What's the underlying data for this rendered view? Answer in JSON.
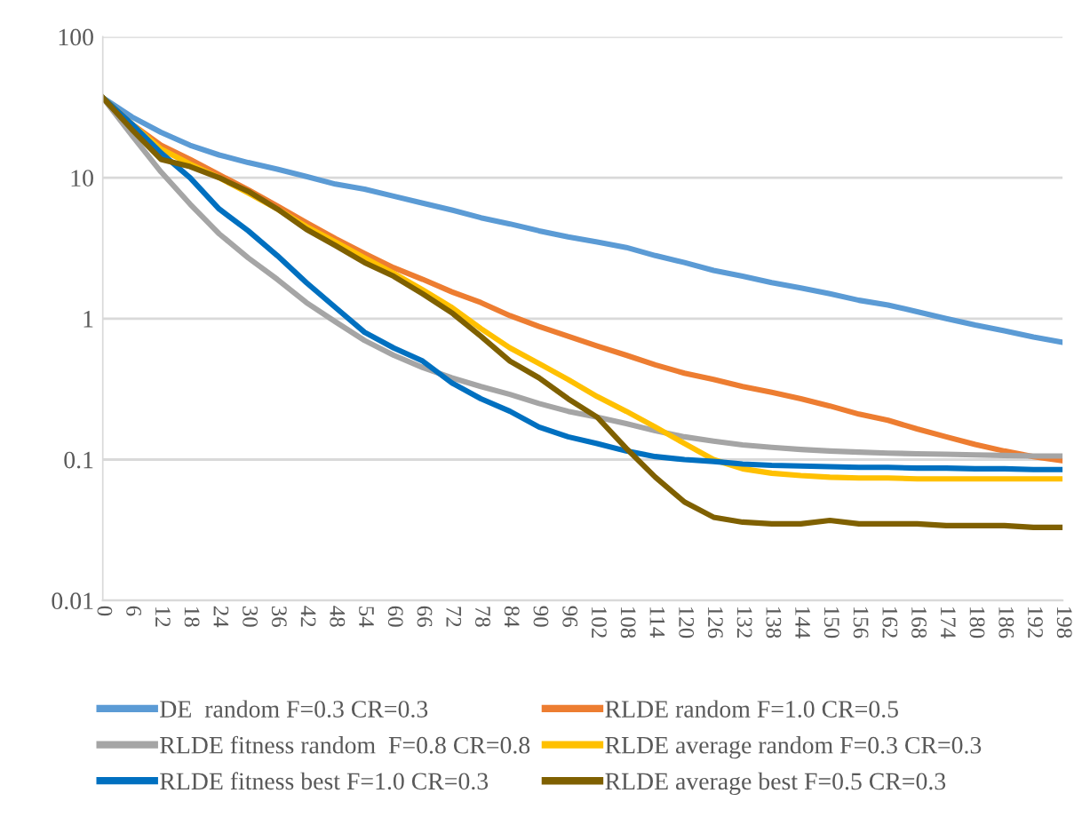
{
  "chart_data": {
    "type": "line",
    "x": [
      0,
      6,
      12,
      18,
      24,
      30,
      36,
      42,
      48,
      54,
      60,
      66,
      72,
      78,
      84,
      90,
      96,
      102,
      108,
      114,
      120,
      126,
      132,
      138,
      144,
      150,
      156,
      162,
      168,
      174,
      180,
      186,
      192,
      198
    ],
    "xlim": [
      0,
      198
    ],
    "xticks": [
      0,
      6,
      12,
      18,
      24,
      30,
      36,
      42,
      48,
      54,
      60,
      66,
      72,
      78,
      84,
      90,
      96,
      102,
      108,
      114,
      120,
      126,
      132,
      138,
      144,
      150,
      156,
      162,
      168,
      174,
      180,
      186,
      192,
      198
    ],
    "ylim": [
      0.01,
      100
    ],
    "yticks": [
      0.01,
      0.1,
      1,
      10,
      100
    ],
    "log": "y",
    "grid": "y",
    "legend": "bottom",
    "marker": "none",
    "line_style": "solid",
    "series": [
      {
        "name": "DE  random F=0.3 CR=0.3",
        "color": "#5b9bd5",
        "values": [
          37,
          27,
          21,
          17,
          14.5,
          12.8,
          11.5,
          10.2,
          9.0,
          8.3,
          7.4,
          6.6,
          5.9,
          5.2,
          4.7,
          4.2,
          3.8,
          3.5,
          3.2,
          2.8,
          2.5,
          2.2,
          2.0,
          1.8,
          1.65,
          1.5,
          1.35,
          1.25,
          1.12,
          1.0,
          0.9,
          0.82,
          0.74,
          0.68
        ]
      },
      {
        "name": "RLDE random F=1.0 CR=0.5",
        "color": "#ed7d31",
        "values": [
          37,
          24,
          17,
          13.5,
          10.5,
          8.2,
          6.3,
          4.8,
          3.7,
          2.9,
          2.3,
          1.9,
          1.55,
          1.3,
          1.05,
          0.88,
          0.75,
          0.64,
          0.55,
          0.47,
          0.41,
          0.37,
          0.33,
          0.3,
          0.27,
          0.24,
          0.21,
          0.19,
          0.165,
          0.145,
          0.128,
          0.115,
          0.105,
          0.098
        ]
      },
      {
        "name": "RLDE fitness random  F=0.8 CR=0.8",
        "color": "#a5a5a5",
        "values": [
          37,
          20,
          11,
          6.5,
          4.0,
          2.7,
          1.9,
          1.3,
          0.95,
          0.7,
          0.55,
          0.45,
          0.38,
          0.33,
          0.29,
          0.25,
          0.22,
          0.2,
          0.18,
          0.16,
          0.145,
          0.135,
          0.127,
          0.122,
          0.118,
          0.115,
          0.113,
          0.111,
          0.11,
          0.109,
          0.108,
          0.107,
          0.106,
          0.106
        ]
      },
      {
        "name": "RLDE average random F=0.3 CR=0.3",
        "color": "#ffc000",
        "values": [
          37,
          24,
          16,
          12.5,
          10,
          7.8,
          6,
          4.5,
          3.5,
          2.7,
          2.1,
          1.6,
          1.2,
          0.85,
          0.62,
          0.48,
          0.37,
          0.28,
          0.22,
          0.17,
          0.13,
          0.1,
          0.086,
          0.08,
          0.077,
          0.075,
          0.074,
          0.074,
          0.073,
          0.073,
          0.073,
          0.073,
          0.073,
          0.073
        ]
      },
      {
        "name": "RLDE fitness best F=1.0 CR=0.3",
        "color": "#0070c0",
        "values": [
          37,
          24,
          15,
          10,
          6,
          4.2,
          2.8,
          1.8,
          1.2,
          0.8,
          0.62,
          0.5,
          0.35,
          0.27,
          0.22,
          0.17,
          0.145,
          0.13,
          0.115,
          0.105,
          0.1,
          0.097,
          0.093,
          0.091,
          0.09,
          0.089,
          0.088,
          0.088,
          0.087,
          0.087,
          0.086,
          0.086,
          0.085,
          0.085
        ]
      },
      {
        "name": "RLDE average best F=0.5 CR=0.3",
        "color": "#7f6000",
        "values": [
          37,
          22,
          13.5,
          12,
          10,
          8,
          6,
          4.3,
          3.3,
          2.5,
          2.0,
          1.5,
          1.1,
          0.75,
          0.5,
          0.38,
          0.27,
          0.2,
          0.12,
          0.075,
          0.05,
          0.039,
          0.036,
          0.035,
          0.035,
          0.037,
          0.035,
          0.035,
          0.035,
          0.034,
          0.034,
          0.034,
          0.033,
          0.033
        ]
      }
    ]
  }
}
